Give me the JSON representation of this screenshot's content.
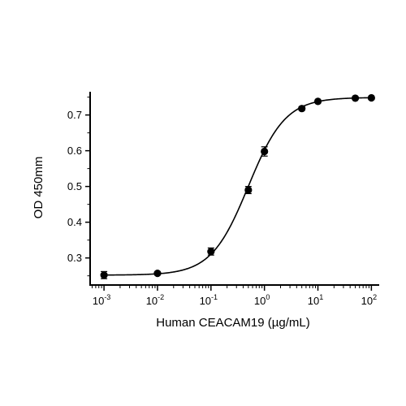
{
  "chart_data": {
    "type": "scatter",
    "title": "",
    "xlabel": "Human CEACAM19 (µg/mL)",
    "ylabel": "OD 450mm",
    "x_scale": "log10",
    "xlim": [
      0.00055,
      140
    ],
    "ylim": [
      0.222,
      0.765
    ],
    "x_ticks": [
      {
        "value": 0.001,
        "base": "10",
        "exp": "-3"
      },
      {
        "value": 0.01,
        "base": "10",
        "exp": "-2"
      },
      {
        "value": 0.1,
        "base": "10",
        "exp": "-1"
      },
      {
        "value": 1,
        "base": "10",
        "exp": "0"
      },
      {
        "value": 10,
        "base": "10",
        "exp": "1"
      },
      {
        "value": 100,
        "base": "10",
        "exp": "2"
      }
    ],
    "y_ticks": [
      0.3,
      0.4,
      0.5,
      0.6,
      0.7
    ],
    "y_tick_labels": [
      "0.3",
      "0.4",
      "0.5",
      "0.6",
      "0.7"
    ],
    "grid": false,
    "legend": "none",
    "series": [
      {
        "points": [
          {
            "x": 0.001,
            "y": 0.252,
            "err": 0.01
          },
          {
            "x": 0.01,
            "y": 0.257,
            "err": 0.004
          },
          {
            "x": 0.1,
            "y": 0.318,
            "err": 0.01
          },
          {
            "x": 0.5,
            "y": 0.49,
            "err": 0.01
          },
          {
            "x": 1,
            "y": 0.598,
            "err": 0.013
          },
          {
            "x": 5,
            "y": 0.718,
            "err": 0.005
          },
          {
            "x": 10,
            "y": 0.738,
            "err": 0.003
          },
          {
            "x": 50,
            "y": 0.747,
            "err": 0.003
          },
          {
            "x": 100,
            "y": 0.748,
            "err": 0.002
          }
        ],
        "fit": {
          "model": "4PL",
          "bottom": 0.252,
          "top": 0.749,
          "ec50": 0.5,
          "hill": 1.25
        },
        "color": "#000000"
      }
    ]
  }
}
